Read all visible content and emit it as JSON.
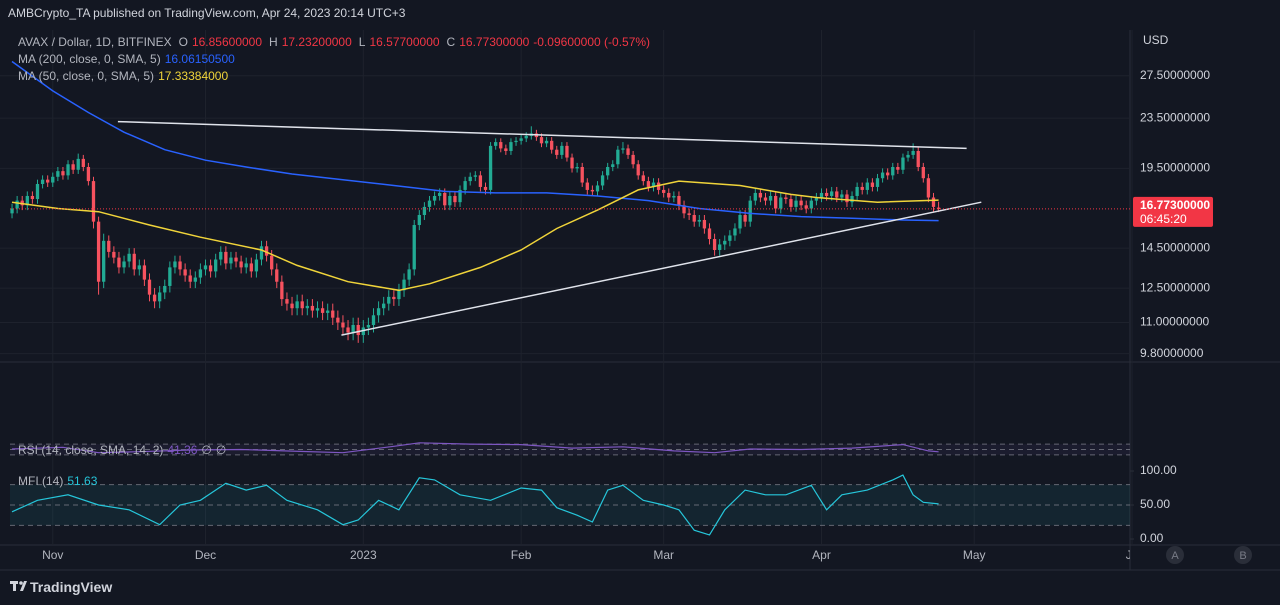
{
  "header": {
    "publisher": "AMBCrypto_TA published on TradingView.com, Apr 24, 2023 20:14 UTC+3",
    "currency": "USD",
    "brand": "TradingView",
    "pane_buttons": [
      "A",
      "B"
    ]
  },
  "chart_data": [
    {
      "type": "candlestick",
      "title": "AVAX / Dollar, 1D, BITFINEX",
      "ohlc_labels": [
        {
          "key": "O",
          "value": "16.85600000"
        },
        {
          "key": "H",
          "value": "17.23200000"
        },
        {
          "key": "L",
          "value": "16.57700000"
        },
        {
          "key": "C",
          "value": "16.77300000"
        }
      ],
      "change": "-0.09600000 (-0.57%)",
      "up_color": "#22ab94",
      "down_color": "#f7525f",
      "log_scale": true,
      "grid": true,
      "xlim": [
        -0.4,
        219.6
      ],
      "xticks": [
        {
          "value": 8,
          "label": "Nov"
        },
        {
          "value": 38,
          "label": "Dec"
        },
        {
          "value": 69,
          "label": "2023"
        },
        {
          "value": 100,
          "label": "Feb"
        },
        {
          "value": 128,
          "label": "Mar"
        },
        {
          "value": 159,
          "label": "Apr"
        },
        {
          "value": 189,
          "label": "May"
        },
        {
          "value": 220,
          "label": "Ju"
        }
      ],
      "ylim": [
        9.5,
        32.6
      ],
      "yticks": [
        {
          "value": 9.8,
          "label": "9.80000000"
        },
        {
          "value": 11,
          "label": "11.00000000"
        },
        {
          "value": 12.5,
          "label": "12.50000000"
        },
        {
          "value": 14.5,
          "label": "14.50000000"
        },
        {
          "value": 19.5,
          "label": "19.50000000"
        },
        {
          "value": 23.5,
          "label": "23.50000000"
        },
        {
          "value": 27.5,
          "label": "27.50000000"
        }
      ],
      "open": [
        16.5,
        16.8,
        17.3,
        17.0,
        17.6,
        17.4,
        18.4,
        18.7,
        18.5,
        18.9,
        19.3,
        19.0,
        19.8,
        19.4,
        20.2,
        19.6,
        18.6,
        16.0,
        12.8,
        14.9,
        14.3,
        14.0,
        13.5,
        13.8,
        14.2,
        13.4,
        13.6,
        12.9,
        12.2,
        11.9,
        12.3,
        12.6,
        13.5,
        13.8,
        13.4,
        13.1,
        12.8,
        13.0,
        13.4,
        13.6,
        13.3,
        13.9,
        14.3,
        13.7,
        14.0,
        13.8,
        13.5,
        13.7,
        13.3,
        13.9,
        14.6,
        14.1,
        13.4,
        12.8,
        12.0,
        11.8,
        11.6,
        11.9,
        11.6,
        11.7,
        11.5,
        11.6,
        11.4,
        11.5,
        11.2,
        11.0,
        10.8,
        10.6,
        10.9,
        10.5,
        10.8,
        10.9,
        11.3,
        11.6,
        11.8,
        12.1,
        12.0,
        12.4,
        12.9,
        13.4,
        15.8,
        16.4,
        16.9,
        17.3,
        17.6,
        17.8,
        17.0,
        17.6,
        17.2,
        18.0,
        18.6,
        18.9,
        19.0,
        18.2,
        18.0,
        21.2,
        21.5,
        21.0,
        20.8,
        21.5,
        21.6,
        21.8,
        22.0,
        22.2,
        21.9,
        21.4,
        21.6,
        20.9,
        20.5,
        21.2,
        20.3,
        19.5,
        19.6,
        18.5,
        18.0,
        17.9,
        18.3,
        19.0,
        19.6,
        19.8,
        20.9,
        21.0,
        20.5,
        19.8,
        19.0,
        18.6,
        18.2,
        18.5,
        18.0,
        17.8,
        17.5,
        17.6,
        17.0,
        16.5,
        16.4,
        16.0,
        16.1,
        15.6,
        15.0,
        14.4,
        14.7,
        14.9,
        15.2,
        15.6,
        16.4,
        16.0,
        17.3,
        17.8,
        17.5,
        17.3,
        17.6,
        16.8,
        17.5,
        17.4,
        16.9,
        17.3,
        17.0,
        16.8,
        17.3,
        17.5,
        17.8,
        17.6,
        17.9,
        17.5,
        17.7,
        17.2,
        17.6,
        18.2,
        18.0,
        18.5,
        18.2,
        18.8,
        19.2,
        19.0,
        19.6,
        19.4,
        20.3,
        20.5,
        20.8,
        19.6,
        18.8,
        17.5,
        16.856
      ],
      "high": [
        17.1,
        17.6,
        17.6,
        17.9,
        17.9,
        18.7,
        19.0,
        19.0,
        19.2,
        19.6,
        19.6,
        20.1,
        20.1,
        20.6,
        20.5,
        19.9,
        18.9,
        16.3,
        15.3,
        15.2,
        14.6,
        14.3,
        14.1,
        14.5,
        14.5,
        13.9,
        13.9,
        13.2,
        12.5,
        12.6,
        12.9,
        13.8,
        14.1,
        14.1,
        13.7,
        13.4,
        13.3,
        13.7,
        13.9,
        13.9,
        14.2,
        14.6,
        14.6,
        14.3,
        14.3,
        14.1,
        14.0,
        14.0,
        14.2,
        14.9,
        14.9,
        14.4,
        13.7,
        13.1,
        12.3,
        12.1,
        12.2,
        12.2,
        12.0,
        12.0,
        11.9,
        11.9,
        11.8,
        11.8,
        11.5,
        11.3,
        11.1,
        11.2,
        11.2,
        11.1,
        11.2,
        11.6,
        11.9,
        12.1,
        12.4,
        12.4,
        12.7,
        13.2,
        13.7,
        16.1,
        16.7,
        17.2,
        17.6,
        17.9,
        18.1,
        18.1,
        17.9,
        17.9,
        18.3,
        18.9,
        19.2,
        19.3,
        19.3,
        18.5,
        21.5,
        21.8,
        21.8,
        21.3,
        21.8,
        21.9,
        22.1,
        22.3,
        22.8,
        22.5,
        22.2,
        21.9,
        21.9,
        21.2,
        21.5,
        21.5,
        20.6,
        19.9,
        19.9,
        18.8,
        18.3,
        18.6,
        19.3,
        19.9,
        20.1,
        21.2,
        21.5,
        21.3,
        20.8,
        20.1,
        19.3,
        18.9,
        18.8,
        18.8,
        18.3,
        18.1,
        17.9,
        17.9,
        17.3,
        16.8,
        16.7,
        16.4,
        16.4,
        15.9,
        15.3,
        15.0,
        15.2,
        15.5,
        15.9,
        16.7,
        16.7,
        17.6,
        18.1,
        18.1,
        17.8,
        17.9,
        17.9,
        17.8,
        17.8,
        17.7,
        17.6,
        17.6,
        17.3,
        17.6,
        17.8,
        18.1,
        18.1,
        18.2,
        18.2,
        18.0,
        18.0,
        17.9,
        18.5,
        18.5,
        18.8,
        18.8,
        19.1,
        19.5,
        19.5,
        19.9,
        19.9,
        20.6,
        20.8,
        21.4,
        21.1,
        19.9,
        19.1,
        17.8,
        17.232
      ],
      "low": [
        16.2,
        16.5,
        16.7,
        16.7,
        17.1,
        17.1,
        18.1,
        18.2,
        18.2,
        18.6,
        18.7,
        18.7,
        19.1,
        19.1,
        19.3,
        18.3,
        15.6,
        12.2,
        12.5,
        14.0,
        13.7,
        13.2,
        13.2,
        13.5,
        13.1,
        13.1,
        12.6,
        11.9,
        11.6,
        11.6,
        12.0,
        12.3,
        13.2,
        13.1,
        12.8,
        12.5,
        12.5,
        12.7,
        13.1,
        13.0,
        13.0,
        13.6,
        13.4,
        13.4,
        13.5,
        13.2,
        13.2,
        13.0,
        13.0,
        13.6,
        13.8,
        13.1,
        12.5,
        11.7,
        11.5,
        11.3,
        11.3,
        11.3,
        11.3,
        11.2,
        11.2,
        11.1,
        11.1,
        10.9,
        10.7,
        10.5,
        10.3,
        10.3,
        10.2,
        10.2,
        10.5,
        10.6,
        11.0,
        11.3,
        11.5,
        11.7,
        11.7,
        12.1,
        12.6,
        13.1,
        15.5,
        16.1,
        16.6,
        17.0,
        17.3,
        16.7,
        16.7,
        16.9,
        16.9,
        17.7,
        18.3,
        18.6,
        17.9,
        17.7,
        17.7,
        20.9,
        20.7,
        20.5,
        20.5,
        21.2,
        21.3,
        21.5,
        21.7,
        21.6,
        21.1,
        21.1,
        20.6,
        20.2,
        20.2,
        20.0,
        19.2,
        19.2,
        18.2,
        17.7,
        17.6,
        17.6,
        18.0,
        18.7,
        19.3,
        19.5,
        20.6,
        20.2,
        19.5,
        18.7,
        18.3,
        17.9,
        17.9,
        17.7,
        17.5,
        17.2,
        17.2,
        16.7,
        16.2,
        16.1,
        15.7,
        15.7,
        15.3,
        14.7,
        14.1,
        14.1,
        14.4,
        14.6,
        14.9,
        15.3,
        15.7,
        15.7,
        17.0,
        17.2,
        17.0,
        17.0,
        16.5,
        16.5,
        17.1,
        16.6,
        16.6,
        16.7,
        16.5,
        16.5,
        17.0,
        17.2,
        17.3,
        17.3,
        17.2,
        17.2,
        16.9,
        16.9,
        17.3,
        17.7,
        17.7,
        17.9,
        17.9,
        18.5,
        18.7,
        18.7,
        19.1,
        19.1,
        20.0,
        20.2,
        19.3,
        18.5,
        17.2,
        16.6,
        16.577
      ],
      "close": [
        16.8,
        17.3,
        17.0,
        17.6,
        17.4,
        18.4,
        18.7,
        18.5,
        18.9,
        19.3,
        19.0,
        19.8,
        19.4,
        20.2,
        19.6,
        18.6,
        16.0,
        12.8,
        14.9,
        14.3,
        14.0,
        13.5,
        13.8,
        14.2,
        13.4,
        13.6,
        12.9,
        12.2,
        11.9,
        12.3,
        12.6,
        13.5,
        13.8,
        13.4,
        13.1,
        12.8,
        13.0,
        13.4,
        13.6,
        13.3,
        13.9,
        14.3,
        13.7,
        14.0,
        13.8,
        13.5,
        13.7,
        13.3,
        13.9,
        14.6,
        14.1,
        13.4,
        12.8,
        12.0,
        11.8,
        11.6,
        11.9,
        11.6,
        11.7,
        11.5,
        11.6,
        11.4,
        11.5,
        11.2,
        11.0,
        10.8,
        10.6,
        10.9,
        10.5,
        10.8,
        10.9,
        11.3,
        11.6,
        11.8,
        12.1,
        12.0,
        12.4,
        12.9,
        13.4,
        15.8,
        16.4,
        16.9,
        17.3,
        17.6,
        17.8,
        17.0,
        17.6,
        17.2,
        18.0,
        18.6,
        18.9,
        19.0,
        18.2,
        18.0,
        21.2,
        21.5,
        21.0,
        20.8,
        21.5,
        21.6,
        21.8,
        22.0,
        22.2,
        21.9,
        21.4,
        21.6,
        20.9,
        20.5,
        21.2,
        20.3,
        19.5,
        19.6,
        18.5,
        18.0,
        17.9,
        18.3,
        19.0,
        19.6,
        19.8,
        20.9,
        21.0,
        20.5,
        19.8,
        19.0,
        18.6,
        18.2,
        18.5,
        18.0,
        17.8,
        17.5,
        17.6,
        17.0,
        16.5,
        16.4,
        16.0,
        16.1,
        15.6,
        15.0,
        14.4,
        14.7,
        14.9,
        15.2,
        15.6,
        16.4,
        16.0,
        17.3,
        17.8,
        17.5,
        17.3,
        17.6,
        16.8,
        17.5,
        17.4,
        16.9,
        17.3,
        17.0,
        16.8,
        17.3,
        17.5,
        17.8,
        17.6,
        17.9,
        17.5,
        17.7,
        17.2,
        17.6,
        18.2,
        18.0,
        18.5,
        18.2,
        18.8,
        19.2,
        19.0,
        19.6,
        19.4,
        20.3,
        20.5,
        20.8,
        19.6,
        18.8,
        17.5,
        16.9,
        16.773
      ],
      "overlays": [
        {
          "name": "MA (200, close, 0, SMA, 5)",
          "last_value": "16.06150500",
          "color": "#2962ff",
          "x": [
            0,
            8,
            15,
            22,
            30,
            38,
            46,
            55,
            65,
            75,
            85,
            95,
            105,
            115,
            125,
            135,
            145,
            155,
            165,
            175,
            182
          ],
          "values": [
            29.0,
            26.0,
            24.0,
            22.3,
            20.9,
            20.1,
            19.6,
            19.1,
            18.7,
            18.3,
            17.9,
            17.8,
            17.8,
            17.6,
            17.3,
            16.8,
            16.5,
            16.3,
            16.2,
            16.1,
            16.0615
          ]
        },
        {
          "name": "MA (50, close, 0, SMA, 5)",
          "last_value": "17.33384000",
          "color": "#f0d43a",
          "x": [
            0,
            9,
            17,
            27,
            37,
            49,
            56,
            66,
            76,
            82,
            92,
            100,
            107,
            115,
            123,
            131,
            143,
            153,
            158,
            170,
            182
          ],
          "values": [
            17.2,
            16.8,
            16.6,
            15.8,
            15.1,
            14.4,
            13.6,
            12.8,
            12.4,
            12.7,
            13.5,
            14.4,
            15.6,
            16.7,
            18.0,
            18.6,
            18.3,
            17.7,
            17.5,
            17.2,
            17.33384
          ]
        }
      ],
      "trendlines": [
        {
          "color": "#e0e3eb",
          "x": [
            20.8,
            187.5
          ],
          "values": [
            23.2,
            21.0
          ]
        },
        {
          "color": "#e0e3eb",
          "x": [
            64.7,
            190.4
          ],
          "values": [
            10.5,
            17.2
          ]
        }
      ],
      "last_price": {
        "label": "16.77300000",
        "countdown": "06:45:20",
        "color": "#f23645"
      }
    },
    {
      "type": "line",
      "name": "RSI (14, close, SMA, 14, 2)",
      "last_value": "41.36",
      "extras": [
        "∅",
        "∅"
      ],
      "color": "#7e57c2",
      "ylim": [
        0,
        100
      ],
      "bands": [
        30,
        70
      ],
      "midline": 50,
      "x": [
        0,
        10,
        17,
        25,
        35,
        45,
        55,
        65,
        75,
        80,
        90,
        100,
        110,
        120,
        130,
        138,
        145,
        155,
        165,
        175,
        180,
        182
      ],
      "values": [
        52,
        58,
        38,
        42,
        48,
        50,
        44,
        38,
        62,
        75,
        70,
        68,
        55,
        60,
        45,
        38,
        52,
        50,
        55,
        68,
        45,
        41.36
      ]
    },
    {
      "type": "line",
      "name": "MFI (14)",
      "last_value": "51.63",
      "color": "#26c6da",
      "ylim": [
        -8.8,
        111.8
      ],
      "yticks": [
        {
          "value": 0,
          "label": "0.00"
        },
        {
          "value": 50,
          "label": "50.00"
        },
        {
          "value": 100,
          "label": "100.00"
        }
      ],
      "bands": [
        20,
        80
      ],
      "midline": 50,
      "x": [
        0,
        5,
        11,
        17,
        23,
        29,
        33,
        37,
        42,
        46,
        50,
        54,
        60,
        65,
        68,
        72,
        76,
        80,
        83,
        88,
        94,
        100,
        104,
        107,
        111,
        114,
        117,
        120,
        124,
        128,
        131,
        134,
        137,
        140,
        144,
        148,
        152,
        157,
        160,
        163,
        168,
        173,
        175,
        177,
        179,
        182
      ],
      "values": [
        40,
        57,
        65,
        50,
        43,
        21,
        50,
        57,
        82,
        72,
        79,
        57,
        43,
        21,
        28,
        57,
        43,
        90,
        87,
        65,
        57,
        75,
        72,
        46,
        35,
        25,
        72,
        79,
        57,
        50,
        43,
        13,
        6,
        43,
        72,
        65,
        65,
        79,
        43,
        65,
        72,
        87,
        94,
        65,
        54,
        51.63
      ]
    }
  ]
}
